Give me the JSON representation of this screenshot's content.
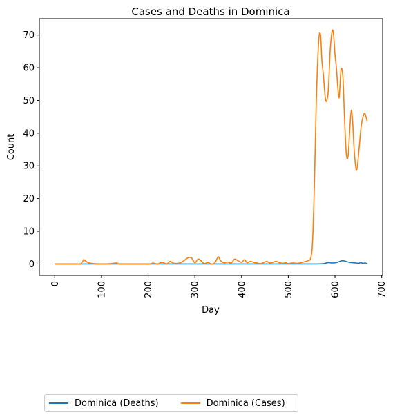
{
  "chart_data": {
    "type": "line",
    "title": "Cases and Deaths in Dominica",
    "xlabel": "Day",
    "ylabel": "Count",
    "xlim": [
      -33,
      702
    ],
    "ylim": [
      -3.5,
      75
    ],
    "x_ticks": [
      0,
      100,
      200,
      300,
      400,
      500,
      600,
      700
    ],
    "y_ticks": [
      0,
      10,
      20,
      30,
      40,
      50,
      60,
      70
    ],
    "grid": false,
    "legend_position": "bottom-left, below plot",
    "series": [
      {
        "name": "Dominica (Deaths)",
        "color": "#1f77b4",
        "x": [
          0,
          100,
          200,
          300,
          400,
          500,
          560,
          575,
          585,
          595,
          605,
          612,
          618,
          625,
          635,
          645,
          650,
          655,
          660,
          665,
          669
        ],
        "y": [
          0,
          0,
          0,
          0,
          0,
          0,
          0,
          0.1,
          0.4,
          0.3,
          0.5,
          0.9,
          1.0,
          0.7,
          0.4,
          0.3,
          0.2,
          0.4,
          0.2,
          0.3,
          0.1
        ]
      },
      {
        "name": "Dominica (Cases)",
        "color": "#ff7f0e",
        "x": [
          0,
          50,
          58,
          62,
          66,
          70,
          75,
          85,
          100,
          120,
          130,
          135,
          140,
          200,
          210,
          220,
          230,
          240,
          247,
          255,
          270,
          280,
          287,
          293,
          300,
          307,
          313,
          320,
          328,
          335,
          343,
          350,
          355,
          362,
          370,
          378,
          385,
          392,
          400,
          406,
          412,
          418,
          426,
          433,
          440,
          447,
          454,
          460,
          467,
          474,
          481,
          488,
          495,
          500,
          508,
          520,
          530,
          538,
          542,
          548,
          552,
          556,
          560,
          565,
          569,
          572,
          575,
          580,
          585,
          588,
          590,
          594,
          597,
          600,
          603,
          606,
          609,
          613,
          617,
          620,
          624,
          628,
          632,
          635,
          638,
          641,
          645,
          648,
          652,
          656,
          660,
          664,
          669
        ],
        "y": [
          0,
          0,
          0.4,
          1.3,
          0.9,
          0.5,
          0.3,
          0.1,
          0,
          0.1,
          0.3,
          0.2,
          0,
          0,
          0.3,
          0,
          0.5,
          0,
          0.8,
          0.2,
          0.4,
          1.4,
          2.0,
          1.8,
          0.4,
          1.5,
          1.0,
          0.1,
          0.5,
          0,
          0.4,
          2.2,
          1.0,
          0.4,
          0.6,
          0.3,
          1.5,
          1.0,
          0.5,
          1.3,
          0.4,
          0.8,
          0.5,
          0.3,
          0.1,
          0.4,
          0.8,
          0.3,
          0.5,
          0.8,
          0.4,
          0.2,
          0.4,
          0.1,
          0.3,
          0.2,
          0.5,
          0.8,
          1.0,
          1.8,
          7,
          25,
          50,
          68,
          70,
          62,
          58,
          50,
          52,
          60,
          66,
          71.3,
          70,
          64,
          60,
          54,
          51,
          59.5,
          57,
          46,
          34,
          33,
          42,
          47,
          43,
          35,
          29,
          30,
          36,
          42,
          45,
          46,
          43.5
        ]
      }
    ]
  }
}
